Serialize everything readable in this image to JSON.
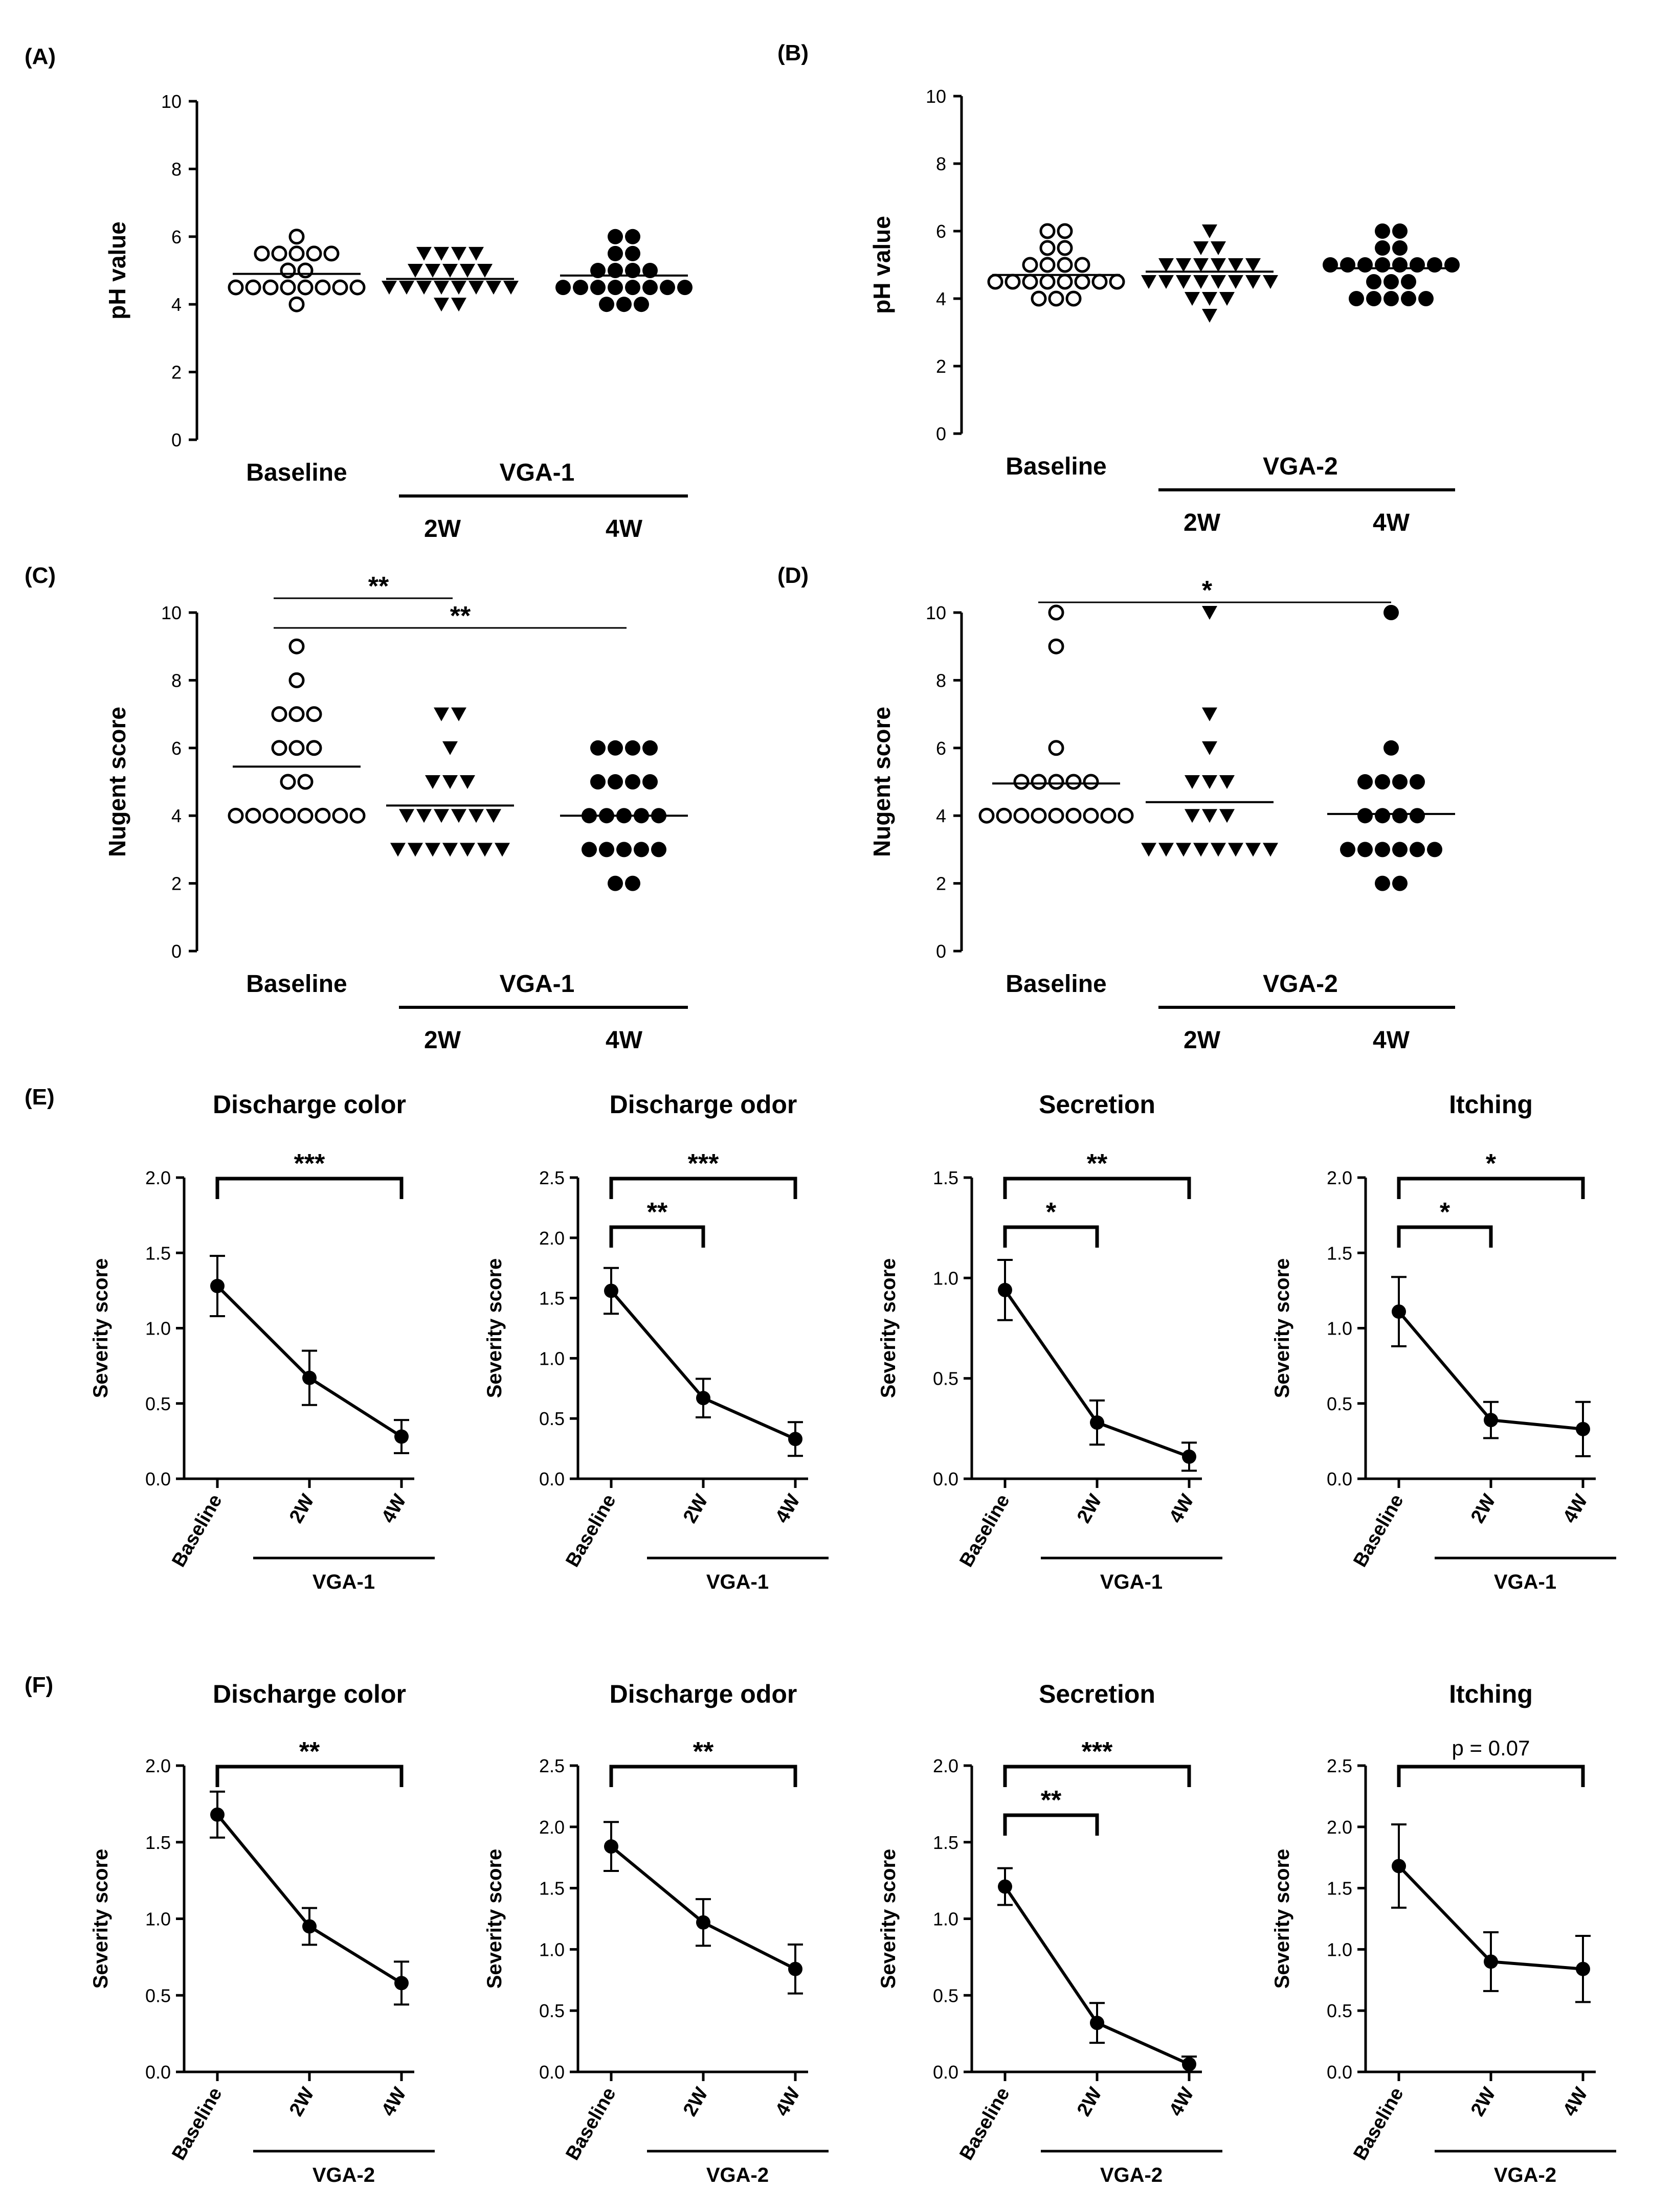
{
  "figure": {
    "panels_top": [
      {
        "label": "(A)",
        "ylabel": "pH value",
        "group_label": "VGA-1",
        "baseline_label": "Baseline",
        "week_labels": [
          "2W",
          "4W"
        ],
        "ylim": [
          0,
          10
        ],
        "yticks": [
          0,
          2,
          4,
          6,
          8,
          10
        ]
      },
      {
        "label": "(B)",
        "ylabel": "pH value",
        "group_label": "VGA-2",
        "baseline_label": "Baseline",
        "week_labels": [
          "2W",
          "4W"
        ],
        "ylim": [
          0,
          10
        ],
        "yticks": [
          0,
          2,
          4,
          6,
          8,
          10
        ]
      },
      {
        "label": "(C)",
        "ylabel": "Nugent score",
        "group_label": "VGA-1",
        "baseline_label": "Baseline",
        "week_labels": [
          "2W",
          "4W"
        ],
        "ylim": [
          0,
          10
        ],
        "yticks": [
          0,
          2,
          4,
          6,
          8,
          10
        ]
      },
      {
        "label": "(D)",
        "ylabel": "Nugent score",
        "group_label": "VGA-2",
        "baseline_label": "Baseline",
        "week_labels": [
          "2W",
          "4W"
        ],
        "ylim": [
          0,
          10
        ],
        "yticks": [
          0,
          2,
          4,
          6,
          8,
          10
        ]
      }
    ],
    "row_labels": [
      "(E)",
      "(F)"
    ]
  },
  "chart_data": [
    {
      "id": "A",
      "type": "scatter",
      "title": "",
      "ylabel": "pH value",
      "categories": [
        "Baseline",
        "2W",
        "4W"
      ],
      "ylim": [
        0,
        10
      ],
      "group_label": "VGA-1",
      "series": [
        {
          "name": "Baseline",
          "marker": "open-circle",
          "mean": 4.9,
          "values": [
            6,
            5.5,
            5.5,
            5.5,
            5.5,
            5.5,
            5,
            5,
            4.5,
            4.5,
            4.5,
            4.5,
            4.5,
            4.5,
            4.5,
            4.5,
            4
          ]
        },
        {
          "name": "2W",
          "marker": "triangle-down",
          "mean": 4.75,
          "values": [
            5.5,
            5.5,
            5.5,
            5.5,
            5,
            5,
            5,
            5,
            5,
            4.5,
            4.5,
            4.5,
            4.5,
            4.5,
            4.5,
            4.5,
            4.5,
            4,
            4
          ]
        },
        {
          "name": "4W",
          "marker": "filled-circle",
          "mean": 4.85,
          "values": [
            6,
            6,
            5.5,
            5.5,
            5,
            5,
            5,
            5,
            4.5,
            4.5,
            4.5,
            4.5,
            4.5,
            4.5,
            4.5,
            4.5,
            4,
            4,
            4
          ]
        }
      ],
      "significance": []
    },
    {
      "id": "B",
      "type": "scatter",
      "title": "",
      "ylabel": "pH value",
      "categories": [
        "Baseline",
        "2W",
        "4W"
      ],
      "ylim": [
        0,
        10
      ],
      "group_label": "VGA-2",
      "series": [
        {
          "name": "Baseline",
          "marker": "open-circle",
          "mean": 4.7,
          "values": [
            6,
            6,
            5.5,
            5.5,
            5,
            5,
            5,
            5,
            4.5,
            4.5,
            4.5,
            4.5,
            4.5,
            4.5,
            4.5,
            4.5,
            4,
            4,
            4
          ]
        },
        {
          "name": "2W",
          "marker": "triangle-down",
          "mean": 4.8,
          "values": [
            6,
            5.5,
            5.5,
            5,
            5,
            5,
            5,
            5,
            5,
            4.5,
            4.5,
            4.5,
            4.5,
            4.5,
            4.5,
            4.5,
            4.5,
            4,
            4,
            4,
            3.5
          ]
        },
        {
          "name": "4W",
          "marker": "filled-circle",
          "mean": 4.9,
          "values": [
            6,
            6,
            5.5,
            5.5,
            5,
            5,
            5,
            5,
            5,
            5,
            5,
            5,
            4.5,
            4.5,
            4.5,
            4,
            4,
            4,
            4,
            4
          ]
        }
      ],
      "significance": []
    },
    {
      "id": "C",
      "type": "scatter",
      "title": "",
      "ylabel": "Nugent score",
      "categories": [
        "Baseline",
        "2W",
        "4W"
      ],
      "ylim": [
        0,
        10
      ],
      "group_label": "VGA-1",
      "series": [
        {
          "name": "Baseline",
          "marker": "open-circle",
          "mean": 5.45,
          "values": [
            9,
            8,
            7,
            7,
            7,
            6,
            6,
            6,
            5,
            5,
            4,
            4,
            4,
            4,
            4,
            4,
            4,
            4
          ]
        },
        {
          "name": "2W",
          "marker": "triangle-down",
          "mean": 4.3,
          "values": [
            7,
            7,
            6,
            5,
            5,
            5,
            4,
            4,
            4,
            4,
            4,
            4,
            3,
            3,
            3,
            3,
            3,
            3,
            3
          ]
        },
        {
          "name": "4W",
          "marker": "filled-circle",
          "mean": 4.0,
          "values": [
            6,
            6,
            6,
            6,
            5,
            5,
            5,
            5,
            4,
            4,
            4,
            4,
            4,
            3,
            3,
            3,
            3,
            3,
            2,
            2
          ]
        }
      ],
      "significance": [
        {
          "from": "Baseline",
          "to": "2W",
          "label": "**"
        },
        {
          "from": "Baseline",
          "to": "4W",
          "label": "**"
        }
      ]
    },
    {
      "id": "D",
      "type": "scatter",
      "title": "",
      "ylabel": "Nugent score",
      "categories": [
        "Baseline",
        "2W",
        "4W"
      ],
      "ylim": [
        0,
        10
      ],
      "group_label": "VGA-2",
      "series": [
        {
          "name": "Baseline",
          "marker": "open-circle",
          "mean": 4.95,
          "values": [
            10,
            9,
            6,
            5,
            5,
            5,
            5,
            5,
            4,
            4,
            4,
            4,
            4,
            4,
            4,
            4,
            4
          ]
        },
        {
          "name": "2W",
          "marker": "triangle-down",
          "mean": 4.4,
          "values": [
            10,
            7,
            6,
            5,
            5,
            5,
            4,
            4,
            4,
            3,
            3,
            3,
            3,
            3,
            3,
            3,
            3
          ]
        },
        {
          "name": "4W",
          "marker": "filled-circle",
          "mean": 4.05,
          "values": [
            10,
            6,
            5,
            5,
            5,
            5,
            4,
            4,
            4,
            4,
            3,
            3,
            3,
            3,
            3,
            3,
            2,
            2
          ]
        }
      ],
      "significance": [
        {
          "from": "Baseline",
          "to": "4W",
          "label": "*"
        }
      ]
    },
    {
      "id": "E1",
      "type": "line",
      "title": "Discharge color",
      "ylabel": "Severity score",
      "categories": [
        "Baseline",
        "2W",
        "4W"
      ],
      "group_label": "VGA-1",
      "ylim": [
        0,
        2.0
      ],
      "yticks": [
        "0.0",
        "0.5",
        "1.0",
        "1.5",
        "2.0"
      ],
      "values": [
        1.28,
        0.67,
        0.28
      ],
      "errors": [
        0.2,
        0.18,
        0.11
      ],
      "significance": [
        {
          "from": "Baseline",
          "to": "4W",
          "label": "***"
        }
      ]
    },
    {
      "id": "E2",
      "type": "line",
      "title": "Discharge odor",
      "ylabel": "Severity score",
      "categories": [
        "Baseline",
        "2W",
        "4W"
      ],
      "group_label": "VGA-1",
      "ylim": [
        0,
        2.5
      ],
      "yticks": [
        "0.0",
        "0.5",
        "1.0",
        "1.5",
        "2.0",
        "2.5"
      ],
      "values": [
        1.56,
        0.67,
        0.33
      ],
      "errors": [
        0.19,
        0.16,
        0.14
      ],
      "significance": [
        {
          "from": "Baseline",
          "to": "2W",
          "label": "**"
        },
        {
          "from": "Baseline",
          "to": "4W",
          "label": "***"
        }
      ]
    },
    {
      "id": "E3",
      "type": "line",
      "title": "Secretion",
      "ylabel": "Severity score",
      "categories": [
        "Baseline",
        "2W",
        "4W"
      ],
      "group_label": "VGA-1",
      "ylim": [
        0,
        1.5
      ],
      "yticks": [
        "0.0",
        "0.5",
        "1.0",
        "1.5"
      ],
      "values": [
        0.94,
        0.28,
        0.11
      ],
      "errors": [
        0.15,
        0.11,
        0.07
      ],
      "significance": [
        {
          "from": "Baseline",
          "to": "2W",
          "label": "*"
        },
        {
          "from": "Baseline",
          "to": "4W",
          "label": "**"
        }
      ]
    },
    {
      "id": "E4",
      "type": "line",
      "title": "Itching",
      "ylabel": "Severity score",
      "categories": [
        "Baseline",
        "2W",
        "4W"
      ],
      "group_label": "VGA-1",
      "ylim": [
        0,
        2.0
      ],
      "yticks": [
        "0.0",
        "0.5",
        "1.0",
        "1.5",
        "2.0"
      ],
      "values": [
        1.11,
        0.39,
        0.33
      ],
      "errors": [
        0.23,
        0.12,
        0.18
      ],
      "significance": [
        {
          "from": "Baseline",
          "to": "2W",
          "label": "*"
        },
        {
          "from": "Baseline",
          "to": "4W",
          "label": "*"
        }
      ]
    },
    {
      "id": "F1",
      "type": "line",
      "title": "Discharge color",
      "ylabel": "Severity score",
      "categories": [
        "Baseline",
        "2W",
        "4W"
      ],
      "group_label": "VGA-2",
      "ylim": [
        0,
        2.0
      ],
      "yticks": [
        "0.0",
        "0.5",
        "1.0",
        "1.5",
        "2.0"
      ],
      "values": [
        1.68,
        0.95,
        0.58
      ],
      "errors": [
        0.15,
        0.12,
        0.14
      ],
      "significance": [
        {
          "from": "Baseline",
          "to": "4W",
          "label": "**"
        }
      ]
    },
    {
      "id": "F2",
      "type": "line",
      "title": "Discharge odor",
      "ylabel": "Severity score",
      "categories": [
        "Baseline",
        "2W",
        "4W"
      ],
      "group_label": "VGA-2",
      "ylim": [
        0,
        2.5
      ],
      "yticks": [
        "0.0",
        "0.5",
        "1.0",
        "1.5",
        "2.0",
        "2.5"
      ],
      "values": [
        1.84,
        1.22,
        0.84
      ],
      "errors": [
        0.2,
        0.19,
        0.2
      ],
      "significance": [
        {
          "from": "Baseline",
          "to": "4W",
          "label": "**"
        }
      ]
    },
    {
      "id": "F3",
      "type": "line",
      "title": "Secretion",
      "ylabel": "Severity score",
      "categories": [
        "Baseline",
        "2W",
        "4W"
      ],
      "group_label": "VGA-2",
      "ylim": [
        0,
        2.0
      ],
      "yticks": [
        "0.0",
        "0.5",
        "1.0",
        "1.5",
        "2.0"
      ],
      "values": [
        1.21,
        0.32,
        0.05
      ],
      "errors": [
        0.12,
        0.13,
        0.05
      ],
      "significance": [
        {
          "from": "Baseline",
          "to": "2W",
          "label": "**"
        },
        {
          "from": "Baseline",
          "to": "4W",
          "label": "***"
        }
      ]
    },
    {
      "id": "F4",
      "type": "line",
      "title": "Itching",
      "ylabel": "Severity score",
      "categories": [
        "Baseline",
        "2W",
        "4W"
      ],
      "group_label": "VGA-2",
      "ylim": [
        0,
        2.5
      ],
      "yticks": [
        "0.0",
        "0.5",
        "1.0",
        "1.5",
        "2.0",
        "2.5"
      ],
      "values": [
        1.68,
        0.9,
        0.84
      ],
      "errors": [
        0.34,
        0.24,
        0.27
      ],
      "significance": [
        {
          "from": "Baseline",
          "to": "4W",
          "label": "p = 0.07"
        }
      ]
    }
  ]
}
